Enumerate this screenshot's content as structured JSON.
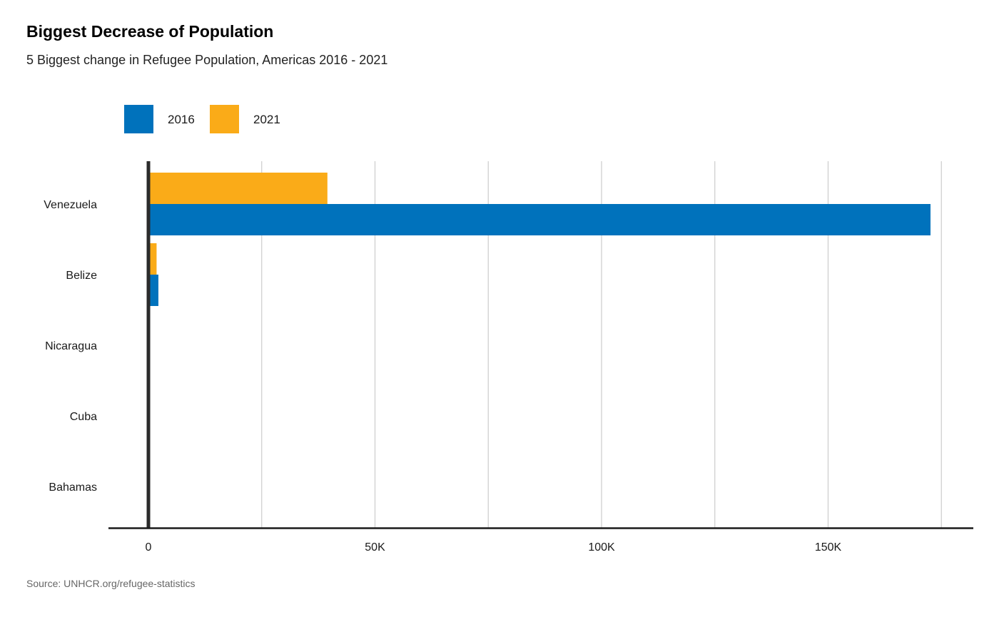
{
  "title": "Biggest Decrease of Population",
  "subtitle": "5 Biggest change in Refugee Population, Americas 2016 - 2021",
  "source": "Source: UNHCR.org/refugee-statistics",
  "chart_data": {
    "type": "bar",
    "orientation": "horizontal",
    "title": "Biggest Decrease of Population",
    "subtitle": "5 Biggest change in Refugee Population, Americas 2016 - 2021",
    "categories": [
      "Venezuela",
      "Belize",
      "Nicaragua",
      "Cuba",
      "Bahamas"
    ],
    "series": [
      {
        "name": "2016",
        "color": "#0072bc",
        "values": [
          172600,
          2200,
          350,
          0,
          0
        ]
      },
      {
        "name": "2021",
        "color": "#faab18",
        "values": [
          39500,
          1800,
          0,
          0,
          0
        ]
      }
    ],
    "xlim": [
      0,
      175000
    ],
    "xticks": [
      0,
      50000,
      100000,
      150000
    ],
    "xtick_labels": [
      "0",
      "50K",
      "100K",
      "150K"
    ],
    "grid": true,
    "legend_position": "top-left"
  }
}
